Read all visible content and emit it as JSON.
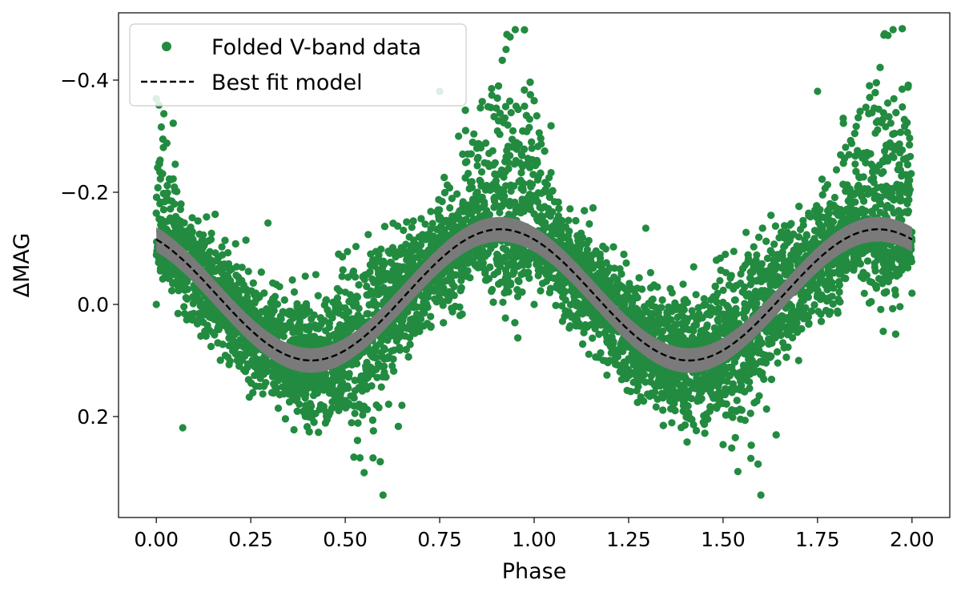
{
  "chart_data": {
    "type": "scatter",
    "title": "",
    "xlabel": "Phase",
    "ylabel": "ΔMAG",
    "xlim": [
      -0.1,
      2.1
    ],
    "ylim": [
      0.38,
      -0.52
    ],
    "y_inverted": true,
    "xticks": [
      0.0,
      0.25,
      0.5,
      0.75,
      1.0,
      1.25,
      1.5,
      1.75,
      2.0
    ],
    "xtick_labels": [
      "0.00",
      "0.25",
      "0.50",
      "0.75",
      "1.00",
      "1.25",
      "1.50",
      "1.75",
      "2.00"
    ],
    "yticks": [
      -0.4,
      -0.2,
      0.0,
      0.2
    ],
    "ytick_labels": [
      "−0.4",
      "−0.2",
      "0.0",
      "0.2"
    ],
    "grid": false,
    "legend": {
      "position": "top-left",
      "entries": [
        {
          "label": "Folded V-band data",
          "marker": "dot",
          "color": "#228B40"
        },
        {
          "label": "Best fit model",
          "marker": "dashed-line",
          "color": "#000000"
        }
      ]
    },
    "series": [
      {
        "name": "Folded V-band data",
        "kind": "scatter",
        "color": "#228B40",
        "points_approx": true,
        "description_values": {
          "phase_range": [
            0.0,
            2.0
          ],
          "typical_scatter_mag": 0.05,
          "max_brightening_mag": -0.49,
          "max_dimming_mag": 0.34
        },
        "points": [
          [
            0.0,
            0.0
          ],
          [
            0.02,
            -0.34
          ],
          [
            0.05,
            -0.25
          ],
          [
            0.07,
            0.22
          ],
          [
            0.15,
            -0.06
          ],
          [
            0.25,
            0.05
          ],
          [
            0.3,
            0.07
          ],
          [
            0.4,
            0.13
          ],
          [
            0.5,
            0.15
          ],
          [
            0.55,
            0.3
          ],
          [
            0.6,
            0.34
          ],
          [
            0.65,
            0.18
          ],
          [
            0.7,
            -0.05
          ],
          [
            0.75,
            -0.38
          ],
          [
            0.8,
            -0.3
          ],
          [
            0.85,
            -0.2
          ],
          [
            0.9,
            -0.35
          ],
          [
            0.95,
            -0.49
          ],
          [
            1.0,
            0.0
          ],
          [
            1.1,
            0.02
          ],
          [
            1.2,
            0.1
          ],
          [
            1.3,
            0.16
          ],
          [
            1.4,
            0.13
          ],
          [
            1.5,
            0.25
          ],
          [
            1.6,
            0.34
          ],
          [
            1.7,
            0.1
          ],
          [
            1.75,
            -0.38
          ],
          [
            1.8,
            -0.24
          ],
          [
            1.9,
            -0.35
          ],
          [
            1.95,
            -0.49
          ],
          [
            2.0,
            -0.02
          ]
        ]
      },
      {
        "name": "Best fit model",
        "kind": "line",
        "style": "dashed",
        "color": "#000000",
        "band_color": "#7A7A7A",
        "model": {
          "form": "sinusoid",
          "mean": -0.017,
          "amplitude": 0.117,
          "peak_phase": 0.91,
          "period": 1.0,
          "band_halfwidth": 0.022
        }
      }
    ]
  }
}
